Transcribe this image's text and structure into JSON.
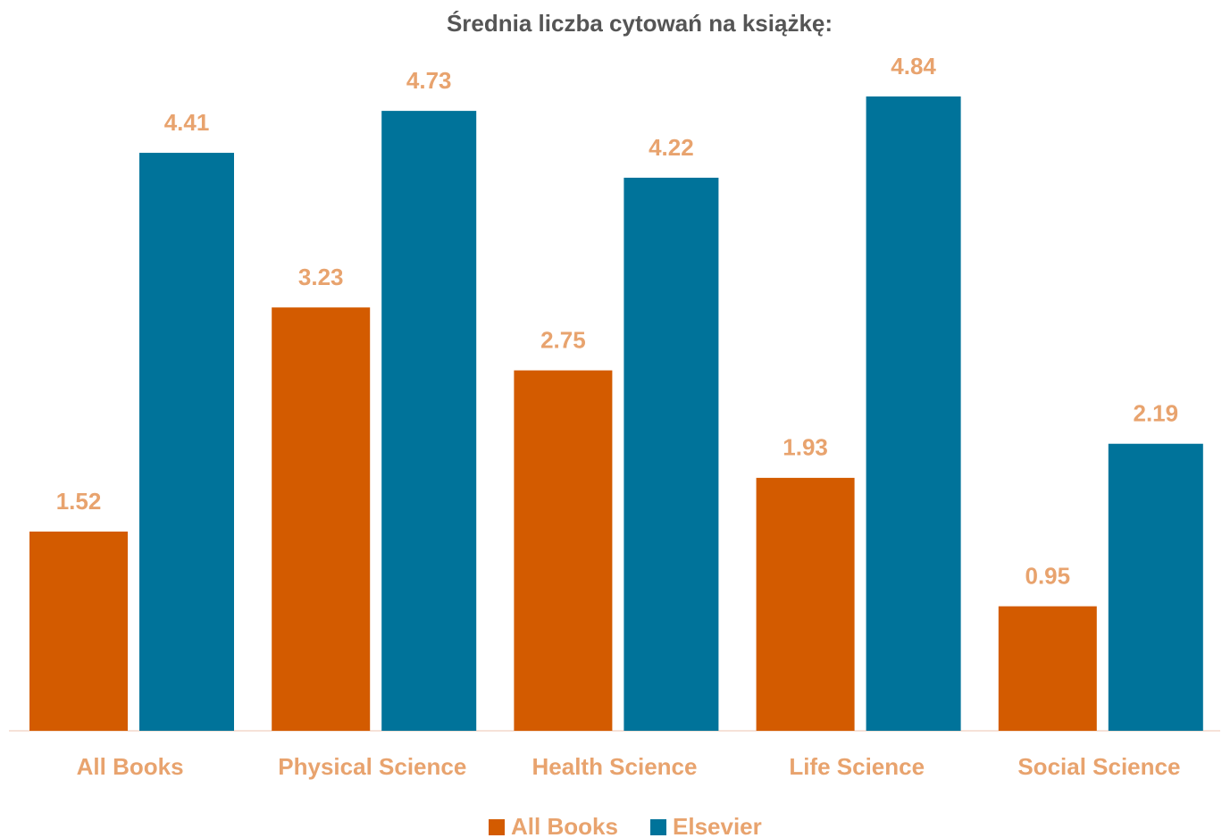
{
  "chart_data": {
    "type": "bar",
    "title": "Średnia liczba cytowań na książkę:",
    "categories": [
      "All Books",
      "Physical Science",
      "Health Science",
      "Life Science",
      "Social Science"
    ],
    "series": [
      {
        "name": "All Books",
        "color": "#d35b00",
        "values": [
          1.52,
          3.23,
          2.75,
          1.93,
          0.95
        ]
      },
      {
        "name": "Elsevier",
        "color": "#00739a",
        "values": [
          4.41,
          4.73,
          4.22,
          4.84,
          2.19
        ]
      }
    ],
    "ylim": [
      0,
      5
    ],
    "label_color": "#e8a36e",
    "legend": "bottom"
  }
}
